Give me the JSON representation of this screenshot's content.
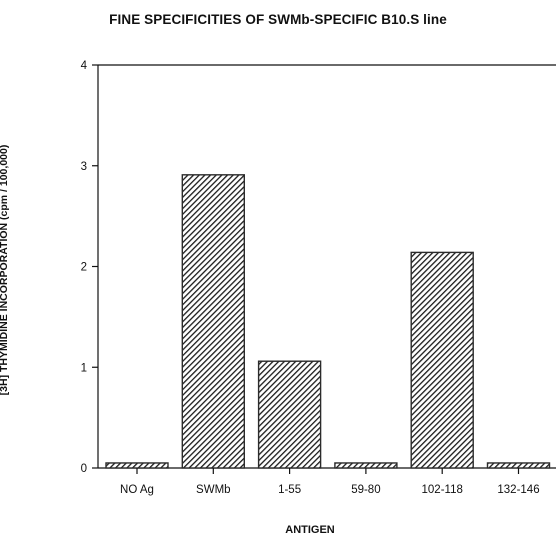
{
  "chart_data": {
    "type": "bar",
    "title": "FINE SPECIFICITIES OF SWMb-SPECIFIC B10.S line",
    "xlabel": "ANTIGEN",
    "ylabel": "[3H] THYMIDINE INCORPORATION (cpm / 100,000)",
    "categories": [
      "NO Ag",
      "SWMb",
      "1-55",
      "59-80",
      "102-118",
      "132-146"
    ],
    "values": [
      0.05,
      2.91,
      1.06,
      0.05,
      2.14,
      0.05
    ],
    "yticks": [
      "0",
      "1",
      "2",
      "3",
      "4"
    ],
    "ylim": [
      0,
      4
    ],
    "grid": false,
    "legend": "none",
    "bar_color": "#2b2b2b"
  }
}
